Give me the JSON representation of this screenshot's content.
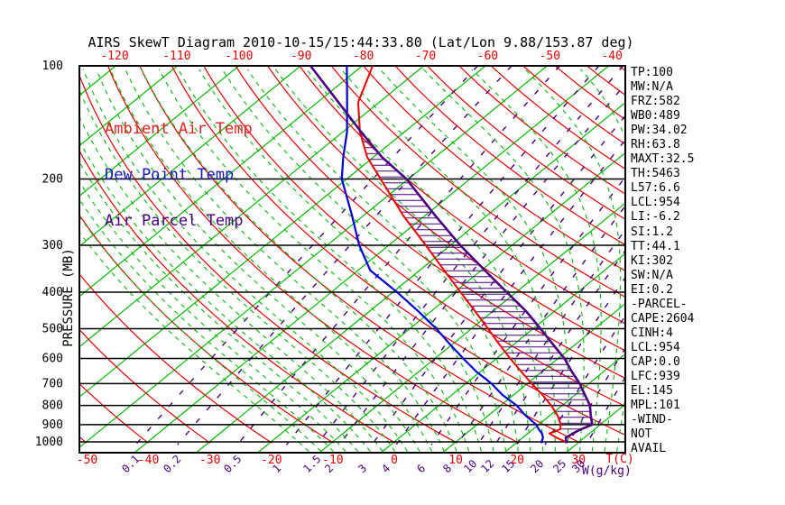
{
  "title": "AIRS SkewT Diagram 2010-10-15/15:44:33.80 (Lat/Lon 9.88/153.87 deg)",
  "legend": {
    "items": [
      {
        "label": "Ambient Air Temp",
        "color": "#e32222"
      },
      {
        "label": "Dew Point Temp",
        "color": "#1515cc"
      },
      {
        "label": "Air Parcel Temp",
        "color": "#4b0082"
      }
    ]
  },
  "stats": {
    "lines": [
      "TP:100",
      "MW:N/A",
      "FRZ:582",
      "WB0:489",
      "PW:34.02",
      "RH:63.8",
      "MAXT:32.5",
      "TH:5463",
      "L57:6.6",
      "LCL:954",
      "LI:-6.2",
      "SI:1.2",
      "TT:44.1",
      "KI:302",
      "SW:N/A",
      "EI:0.2",
      "-PARCEL-",
      "CAPE:2604",
      "CINH:4",
      "LCL:954",
      "CAP:0.0",
      "LFC:939",
      "EL:145",
      "MPL:101",
      "-WIND-",
      "NOT",
      "AVAIL"
    ]
  },
  "chart_data": {
    "type": "line",
    "title": "AIRS SkewT Diagram 2010-10-15/15:44:33.80 (Lat/Lon 9.88/153.87 deg)",
    "y_axis": {
      "label": "PRESSURE (MB)",
      "scale": "log",
      "ticks": [
        100,
        200,
        300,
        400,
        500,
        600,
        700,
        800,
        900,
        1000
      ]
    },
    "x_axis": {
      "label": "T(C)",
      "bottom_ticks": [
        -50,
        -40,
        -30,
        -20,
        -10,
        0,
        10,
        20,
        30
      ],
      "top_ticks": [
        -120,
        -110,
        -100,
        -90,
        -80,
        -70,
        -60,
        -50,
        -40
      ]
    },
    "mixing_ratio_label": "W(g/kg)",
    "mixing_ratio_ticks": [
      0.1,
      0.2,
      0.5,
      1,
      1.5,
      2,
      3,
      4,
      6,
      8,
      10,
      12,
      15,
      20,
      25,
      30
    ],
    "grid": {
      "isotherm_step_c": 10,
      "isotherm_range_c": [
        -160,
        40
      ],
      "dry_adiabat_theta_k": {
        "from": 223,
        "to": 453,
        "step": 10
      },
      "moist_adiabat_surface_c": {
        "from": -12,
        "to": 38,
        "step": 2
      },
      "colors": {
        "isotherm": "#00bb00",
        "dry_adiabat": "#ee0000",
        "mixing_ratio": "#4b0082",
        "moist_adiabat": "#00bb00",
        "pressure_line": "#000000"
      }
    },
    "cape_hatch": {
      "top_mb": 145,
      "bottom_mb": 939,
      "color": "#4b0082"
    },
    "series": [
      {
        "name": "Ambient Air Temp",
        "color": "#ee0000",
        "pressure_mb": [
          100,
          125,
          150,
          175,
          200,
          250,
          300,
          350,
          400,
          450,
          500,
          550,
          600,
          650,
          700,
          750,
          800,
          850,
          900,
          925,
          950,
          975,
          1000,
          1008
        ],
        "temp_c": [
          -78.3,
          -73.4,
          -67.2,
          -61,
          -54.5,
          -43.6,
          -34,
          -26,
          -19,
          -12.8,
          -7.3,
          -2.4,
          2.2,
          6.6,
          10.7,
          14.7,
          18.2,
          21.2,
          23.6,
          24.4,
          23.5,
          25.5,
          27.8,
          28.1
        ]
      },
      {
        "name": "Dew Point Temp",
        "color": "#0000dd",
        "pressure_mb": [
          100,
          125,
          150,
          175,
          200,
          250,
          300,
          350,
          400,
          450,
          500,
          550,
          600,
          650,
          700,
          750,
          800,
          850,
          900,
          925,
          950,
          975,
          1000,
          1008
        ],
        "temp_c": [
          -82.5,
          -75.2,
          -69.3,
          -64.9,
          -60.8,
          -51.9,
          -44.8,
          -38,
          -29.3,
          -22,
          -15.7,
          -10.4,
          -5.4,
          -0.7,
          4.2,
          8.2,
          12.6,
          16,
          19.6,
          20.9,
          22.3,
          23.3,
          23.9,
          24.2
        ]
      },
      {
        "name": "Air Parcel Temp",
        "color": "#4b0082",
        "pressure_mb": [
          100,
          125,
          150,
          175,
          200,
          250,
          300,
          350,
          400,
          450,
          500,
          550,
          600,
          650,
          700,
          750,
          800,
          850,
          900,
          925,
          950,
          975,
          1000,
          1008
        ],
        "temp_c": [
          -88.4,
          -76.6,
          -67.0,
          -58.6,
          -50.3,
          -38.4,
          -28.4,
          -19.4,
          -11.5,
          -4.5,
          1.2,
          6.3,
          11,
          14.8,
          18.5,
          21.6,
          24.5,
          26.6,
          28.7,
          27.8,
          27.3,
          27.0,
          27.9,
          28.1
        ]
      }
    ]
  }
}
